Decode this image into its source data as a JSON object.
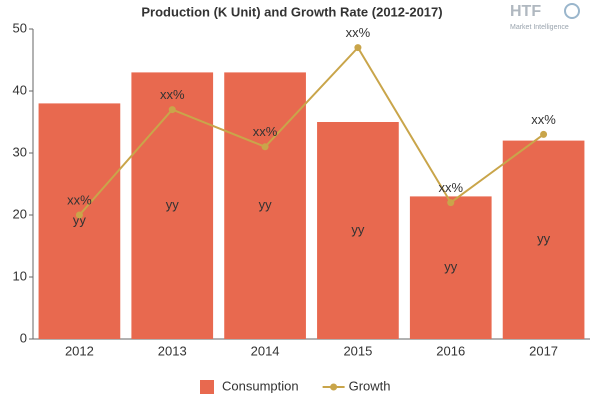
{
  "chart_data": {
    "type": "bar",
    "title": "Production (K Unit) and Growth Rate (2012-2017)",
    "watermark": {
      "logo": "HTF",
      "subtitle": "Market Intelligence"
    },
    "categories": [
      "2012",
      "2013",
      "2014",
      "2015",
      "2016",
      "2017"
    ],
    "series": [
      {
        "name": "Consumption",
        "type": "bar",
        "color": "#e8694f",
        "values": [
          38,
          43,
          43,
          35,
          23,
          32
        ],
        "value_labels": [
          "yy",
          "yy",
          "yy",
          "yy",
          "yy",
          "yy"
        ]
      },
      {
        "name": "Growth",
        "type": "line",
        "color": "#c9a54a",
        "values": [
          20,
          37,
          31,
          47,
          22,
          33
        ],
        "value_labels": [
          "xx%",
          "xx%",
          "xx%",
          "xx%",
          "xx%",
          "xx%"
        ]
      }
    ],
    "ylim": [
      0,
      50
    ],
    "yticks": [
      0,
      10,
      20,
      30,
      40,
      50
    ],
    "grid": false,
    "legend": "bottom"
  }
}
